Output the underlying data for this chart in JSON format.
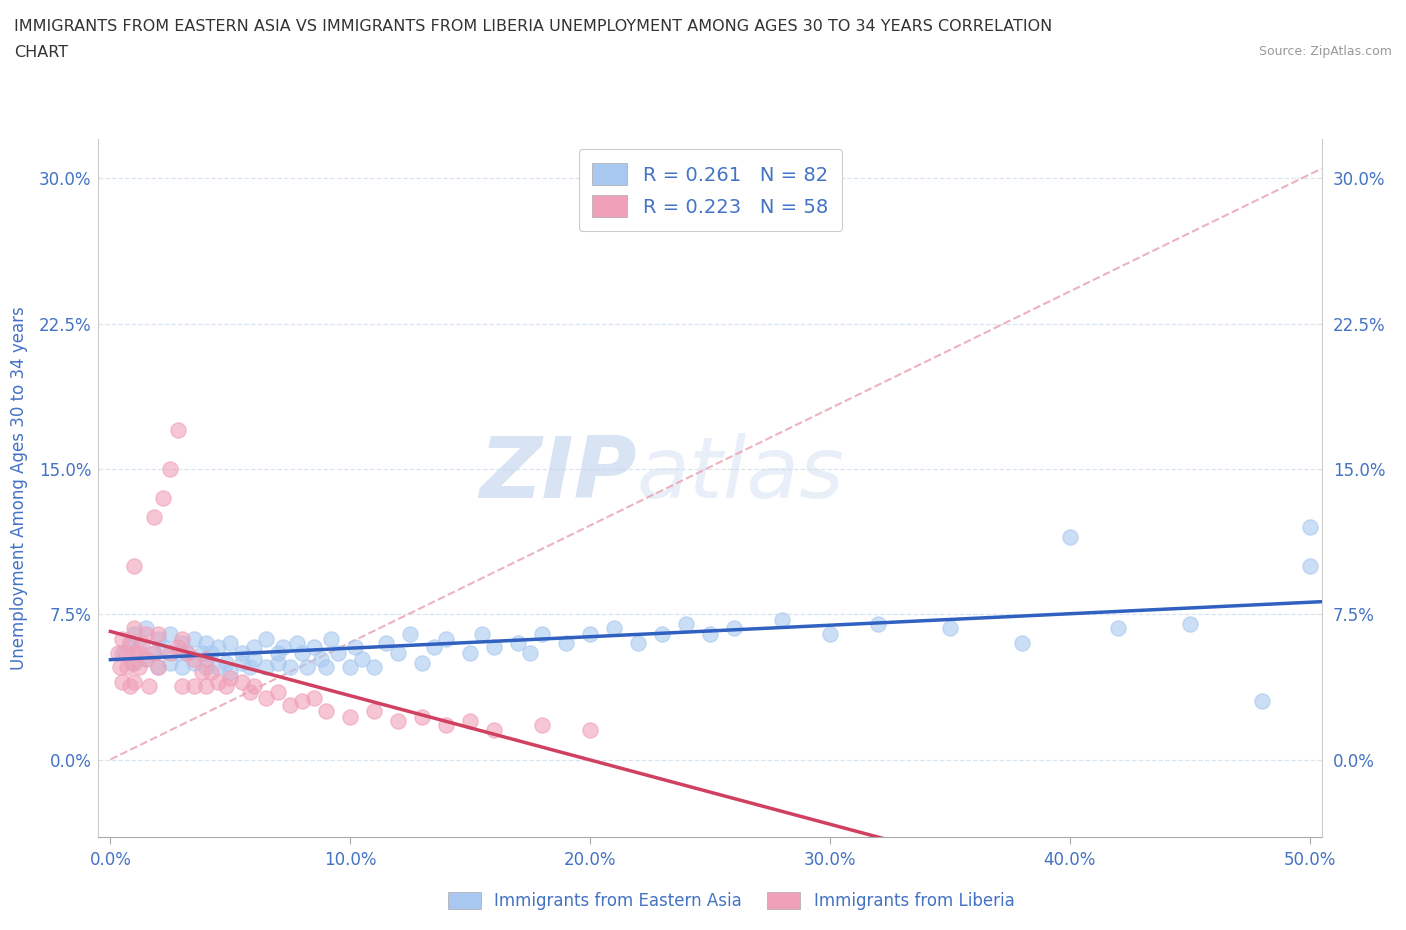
{
  "title_line1": "IMMIGRANTS FROM EASTERN ASIA VS IMMIGRANTS FROM LIBERIA UNEMPLOYMENT AMONG AGES 30 TO 34 YEARS CORRELATION",
  "title_line2": "CHART",
  "source_text": "Source: ZipAtlas.com",
  "ylabel": "Unemployment Among Ages 30 to 34 years",
  "xlim": [
    -0.005,
    0.505
  ],
  "ylim": [
    -0.04,
    0.32
  ],
  "yticks": [
    0.0,
    0.075,
    0.15,
    0.225,
    0.3
  ],
  "ytick_labels": [
    "0.0%",
    "7.5%",
    "15.0%",
    "22.5%",
    "30.0%"
  ],
  "xticks": [
    0.0,
    0.1,
    0.2,
    0.3,
    0.4,
    0.5
  ],
  "xtick_labels": [
    "0.0%",
    "10.0%",
    "20.0%",
    "30.0%",
    "40.0%",
    "50.0%"
  ],
  "color_blue": "#a8c8f0",
  "color_pink": "#f0a0b8",
  "color_blue_line": "#3060c0",
  "color_pink_line": "#d04060",
  "color_diag": "#e8a0b0",
  "color_text": "#4472c4",
  "R_blue": 0.261,
  "N_blue": 82,
  "R_pink": 0.223,
  "N_pink": 58,
  "legend_label_blue": "Immigrants from Eastern Asia",
  "legend_label_pink": "Immigrants from Liberia",
  "watermark_zip": "ZIP",
  "watermark_atlas": "atlas",
  "grid_color": "#d8e4f0",
  "background_color": "#ffffff",
  "blue_scatter_x": [
    0.005,
    0.008,
    0.01,
    0.01,
    0.012,
    0.015,
    0.015,
    0.018,
    0.02,
    0.02,
    0.022,
    0.025,
    0.025,
    0.028,
    0.03,
    0.03,
    0.032,
    0.035,
    0.035,
    0.038,
    0.04,
    0.04,
    0.042,
    0.045,
    0.045,
    0.048,
    0.05,
    0.05,
    0.055,
    0.055,
    0.058,
    0.06,
    0.06,
    0.065,
    0.065,
    0.07,
    0.07,
    0.072,
    0.075,
    0.078,
    0.08,
    0.082,
    0.085,
    0.088,
    0.09,
    0.092,
    0.095,
    0.1,
    0.102,
    0.105,
    0.11,
    0.115,
    0.12,
    0.125,
    0.13,
    0.135,
    0.14,
    0.15,
    0.155,
    0.16,
    0.17,
    0.175,
    0.18,
    0.19,
    0.2,
    0.21,
    0.22,
    0.23,
    0.24,
    0.25,
    0.26,
    0.28,
    0.3,
    0.32,
    0.35,
    0.38,
    0.4,
    0.42,
    0.45,
    0.48,
    0.5,
    0.5
  ],
  "blue_scatter_y": [
    0.055,
    0.06,
    0.05,
    0.065,
    0.058,
    0.052,
    0.068,
    0.055,
    0.048,
    0.062,
    0.058,
    0.05,
    0.065,
    0.055,
    0.048,
    0.06,
    0.055,
    0.05,
    0.062,
    0.055,
    0.048,
    0.06,
    0.055,
    0.048,
    0.058,
    0.05,
    0.045,
    0.06,
    0.05,
    0.055,
    0.048,
    0.058,
    0.052,
    0.048,
    0.062,
    0.055,
    0.05,
    0.058,
    0.048,
    0.06,
    0.055,
    0.048,
    0.058,
    0.052,
    0.048,
    0.062,
    0.055,
    0.048,
    0.058,
    0.052,
    0.048,
    0.06,
    0.055,
    0.065,
    0.05,
    0.058,
    0.062,
    0.055,
    0.065,
    0.058,
    0.06,
    0.055,
    0.065,
    0.06,
    0.065,
    0.068,
    0.06,
    0.065,
    0.07,
    0.065,
    0.068,
    0.072,
    0.065,
    0.07,
    0.068,
    0.06,
    0.115,
    0.068,
    0.07,
    0.03,
    0.1,
    0.12
  ],
  "pink_scatter_x": [
    0.003,
    0.004,
    0.005,
    0.005,
    0.006,
    0.007,
    0.008,
    0.008,
    0.009,
    0.01,
    0.01,
    0.01,
    0.01,
    0.012,
    0.012,
    0.013,
    0.015,
    0.015,
    0.016,
    0.018,
    0.018,
    0.02,
    0.02,
    0.022,
    0.025,
    0.025,
    0.028,
    0.028,
    0.03,
    0.03,
    0.032,
    0.035,
    0.035,
    0.038,
    0.04,
    0.04,
    0.042,
    0.045,
    0.048,
    0.05,
    0.055,
    0.058,
    0.06,
    0.065,
    0.07,
    0.075,
    0.08,
    0.085,
    0.09,
    0.1,
    0.11,
    0.12,
    0.13,
    0.14,
    0.15,
    0.16,
    0.18,
    0.2
  ],
  "pink_scatter_y": [
    0.055,
    0.048,
    0.062,
    0.04,
    0.055,
    0.048,
    0.06,
    0.038,
    0.05,
    0.055,
    0.04,
    0.068,
    0.1,
    0.055,
    0.048,
    0.06,
    0.052,
    0.065,
    0.038,
    0.055,
    0.125,
    0.048,
    0.065,
    0.135,
    0.055,
    0.15,
    0.058,
    0.17,
    0.062,
    0.038,
    0.055,
    0.038,
    0.052,
    0.045,
    0.038,
    0.052,
    0.045,
    0.04,
    0.038,
    0.042,
    0.04,
    0.035,
    0.038,
    0.032,
    0.035,
    0.028,
    0.03,
    0.032,
    0.025,
    0.022,
    0.025,
    0.02,
    0.022,
    0.018,
    0.02,
    0.015,
    0.018,
    0.015
  ],
  "pink_trend_x_start": 0.0,
  "pink_trend_x_end": 0.33,
  "blue_trend_x_start": 0.0,
  "blue_trend_x_end": 0.505
}
